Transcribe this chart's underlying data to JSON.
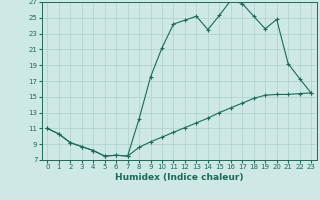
{
  "xlabel": "Humidex (Indice chaleur)",
  "bg_color": "#cde8e5",
  "grid_color": "#b0d0cc",
  "line_color": "#1a6b5a",
  "curve1_x": [
    0,
    1,
    2,
    3,
    4,
    5,
    6,
    7,
    8,
    9,
    10,
    11,
    12,
    13,
    14,
    15,
    16,
    17,
    18,
    19,
    20,
    21,
    22,
    23
  ],
  "curve1_y": [
    11,
    10.3,
    9.2,
    8.7,
    8.2,
    7.5,
    7.6,
    7.5,
    12.2,
    17.5,
    21.2,
    24.2,
    24.7,
    25.2,
    23.5,
    25.3,
    27.2,
    26.8,
    25.2,
    23.6,
    24.8,
    19.2,
    17.3,
    15.5
  ],
  "curve2_x": [
    0,
    1,
    2,
    3,
    4,
    5,
    6,
    7,
    8,
    9,
    10,
    11,
    12,
    13,
    14,
    15,
    16,
    17,
    18,
    19,
    20,
    21,
    22,
    23
  ],
  "curve2_y": [
    11,
    10.3,
    9.2,
    8.7,
    8.2,
    7.5,
    7.6,
    7.5,
    8.6,
    9.3,
    9.9,
    10.5,
    11.1,
    11.7,
    12.3,
    13.0,
    13.6,
    14.2,
    14.8,
    15.2,
    15.3,
    15.3,
    15.4,
    15.5
  ],
  "xlim": [
    -0.5,
    23.5
  ],
  "ylim": [
    7,
    27
  ],
  "xticks": [
    0,
    1,
    2,
    3,
    4,
    5,
    6,
    7,
    8,
    9,
    10,
    11,
    12,
    13,
    14,
    15,
    16,
    17,
    18,
    19,
    20,
    21,
    22,
    23
  ],
  "yticks": [
    7,
    9,
    11,
    13,
    15,
    17,
    19,
    21,
    23,
    25,
    27
  ],
  "tick_fontsize": 5,
  "xlabel_fontsize": 6.5
}
